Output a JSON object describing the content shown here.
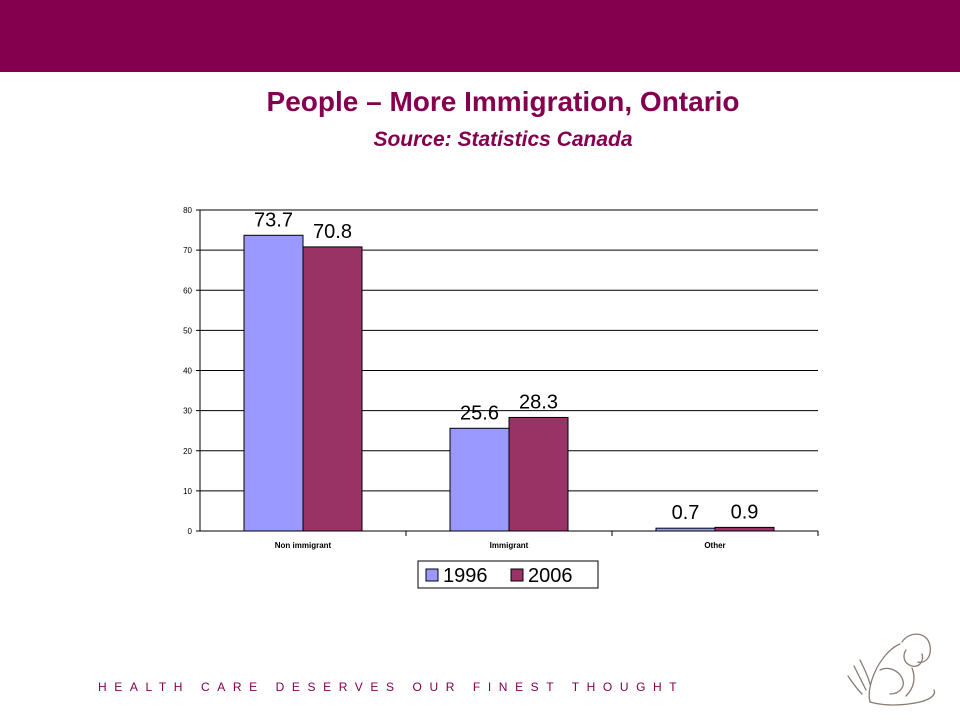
{
  "slide": {
    "title": "People – More Immigration, Ontario",
    "subtitle": "Source: Statistics Canada",
    "footer": "HEALTH CARE DESERVES OUR FINEST THOUGHT"
  },
  "colors": {
    "band": "#84004F",
    "series_1996": "#9999FF",
    "series_2006": "#993366"
  },
  "chart_data": {
    "type": "bar",
    "categories": [
      "Non immigrant",
      "Immigrant",
      "Other"
    ],
    "series": [
      {
        "name": "1996",
        "values": [
          73.7,
          25.6,
          0.7
        ],
        "labels": [
          "73.7",
          "25.6",
          "0.7"
        ],
        "color": "#9999FF"
      },
      {
        "name": "2006",
        "values": [
          70.8,
          28.3,
          0.9
        ],
        "labels": [
          "70.8",
          "28.3",
          "0.9"
        ],
        "color": "#993366"
      }
    ],
    "ylim": [
      0,
      80
    ],
    "yticks": [
      0,
      10,
      20,
      30,
      40,
      50,
      60,
      70,
      80
    ],
    "grid": true,
    "legend": "bottom"
  }
}
